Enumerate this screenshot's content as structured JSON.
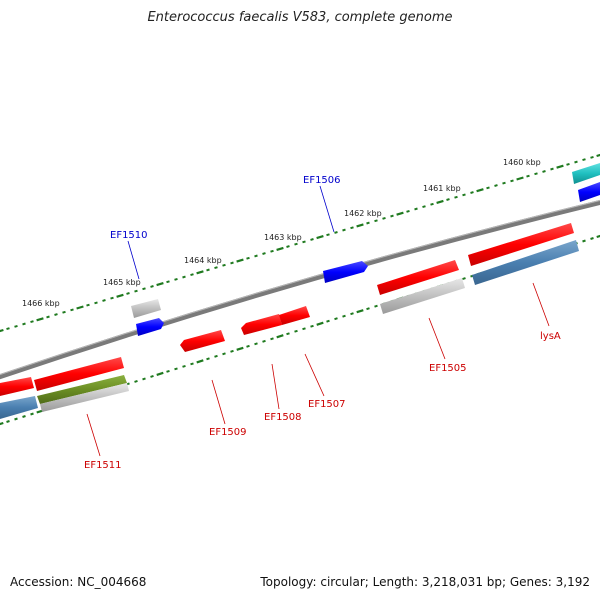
{
  "title": "Enterococcus faecalis V583, complete genome",
  "accession": "Accession: NC_004668",
  "topology": "Topology: circular; Length: 3,218,031 bp; Genes: 3,192",
  "colors": {
    "backbone": "#7a7a7a",
    "tick": "#1f7a1f",
    "forward_label": "#0000cc",
    "reverse_label": "#cc0000",
    "red": "#ff1a1a",
    "blue": "#1a1aff",
    "steel": "#4a7fb0",
    "gray": "#b0b0b0",
    "olive": "#6b8e23",
    "cyan": "#20c0c0"
  },
  "ruler_labels": [
    "1460 kbp",
    "1461 kbp",
    "1462 kbp",
    "1463 kbp",
    "1464 kbp",
    "1465 kbp",
    "1466 kbp"
  ],
  "genes": {
    "EF1510": "EF1510",
    "EF1506": "EF1506",
    "EF1511": "EF1511",
    "EF1509": "EF1509",
    "EF1508": "EF1508",
    "EF1507": "EF1507",
    "EF1505": "EF1505",
    "lysA": "lysA"
  }
}
